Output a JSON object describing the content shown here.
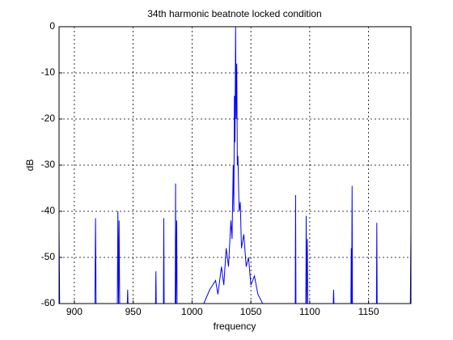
{
  "chart_data": {
    "type": "line",
    "title": "34th harmonic beatnote locked condition",
    "x_label": "frequency",
    "y_label": "dB",
    "color": "#0000ff",
    "grid": true,
    "xlim": [
      887,
      1186
    ],
    "ylim": [
      -60,
      0
    ],
    "xticks": [
      900,
      950,
      1000,
      1050,
      1100,
      1150
    ],
    "yticks": [
      -60,
      -50,
      -40,
      -30,
      -20,
      -10,
      0
    ],
    "x": [
      887,
      887.5,
      917.5,
      918,
      918.5,
      936.5,
      937,
      937.5,
      938,
      938.5,
      945,
      945.3,
      945.6,
      969,
      969.3,
      969.6,
      975.7,
      976,
      976.3,
      985.7,
      986,
      986.3,
      987,
      987.3,
      1010,
      1015,
      1020,
      1022,
      1025,
      1027,
      1029,
      1031,
      1033,
      1034,
      1035,
      1035.5,
      1036,
      1036.5,
      1037,
      1037.5,
      1038,
      1038.5,
      1039,
      1040,
      1041,
      1042,
      1044,
      1046,
      1048,
      1050,
      1053,
      1056,
      1060,
      1087.7,
      1088,
      1088.3,
      1096.7,
      1097,
      1097.3,
      1098,
      1098.3,
      1120,
      1120.3,
      1120.6,
      1135,
      1135.3,
      1135.6,
      1136,
      1136.3,
      1156.7,
      1157,
      1157.3,
      1185.5,
      1186
    ],
    "values": [
      -44,
      -60,
      -60,
      -41.5,
      -60,
      -60,
      -40,
      -60,
      -42,
      -60,
      -60,
      -57,
      -60,
      -60,
      -53,
      -60,
      -60,
      -41.5,
      -60,
      -60,
      -34,
      -60,
      -42,
      -60,
      -60,
      -57,
      -55,
      -58,
      -52,
      -56,
      -48,
      -52,
      -42,
      -46,
      -30,
      -40,
      -15,
      -25,
      0,
      -20,
      -8,
      -30,
      -28,
      -40,
      -38,
      -48,
      -45,
      -52,
      -50,
      -56,
      -54,
      -58,
      -60,
      -60,
      -36.5,
      -60,
      -60,
      -41,
      -60,
      -46,
      -60,
      -60,
      -57,
      -60,
      -60,
      -48,
      -60,
      -34.5,
      -60,
      -60,
      -42.5,
      -60,
      -60,
      -44
    ]
  }
}
